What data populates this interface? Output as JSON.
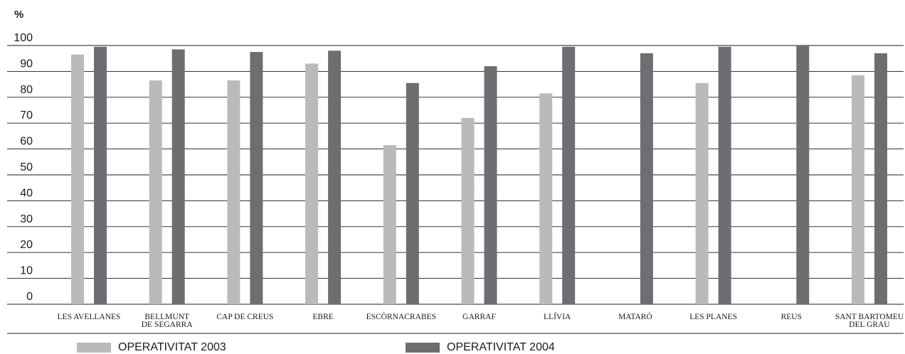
{
  "chart_data": {
    "type": "bar",
    "ylabel": "%",
    "ylim": [
      0,
      100
    ],
    "yticks": [
      0,
      10,
      20,
      30,
      40,
      50,
      60,
      70,
      80,
      90,
      100
    ],
    "grid": true,
    "legend_position": "bottom",
    "categories": [
      [
        "LES AVELLANES"
      ],
      [
        "BELLMUNT",
        "DE SEGARRA"
      ],
      [
        "CAP DE CREUS"
      ],
      [
        "EBRE"
      ],
      [
        "ESCÒRNACRABES"
      ],
      [
        "GARRAF"
      ],
      [
        "LLÍVIA"
      ],
      [
        "MATARÓ"
      ],
      [
        "LES PLANES"
      ],
      [
        "REUS"
      ],
      [
        "SANT BARTOMEU",
        "DEL GRAU"
      ]
    ],
    "series": [
      {
        "name": "OPERATIVITAT 2003",
        "color": "#b9babc",
        "values": [
          96.5,
          86.5,
          86.5,
          93,
          61.5,
          72,
          81.5,
          null,
          85.5,
          null,
          88.5
        ]
      },
      {
        "name": "OPERATIVITAT 2004",
        "color": "#6d6e71",
        "values": [
          99.5,
          98.5,
          97.5,
          98,
          85.5,
          92,
          99.5,
          97,
          99.5,
          100,
          97
        ]
      }
    ]
  }
}
